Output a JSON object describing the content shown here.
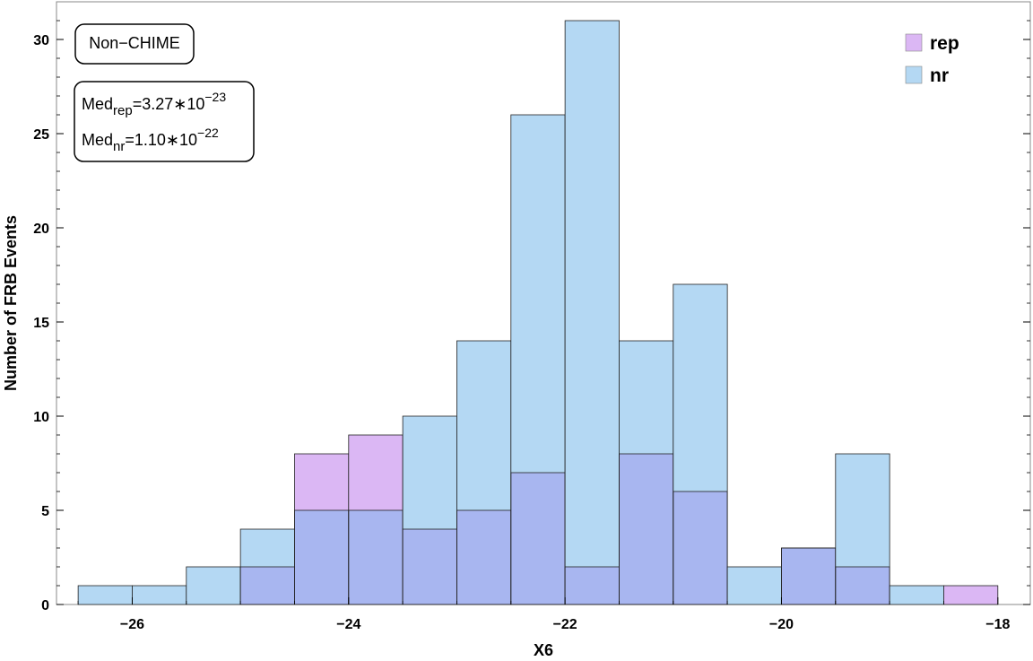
{
  "chart_data": {
    "type": "bar",
    "subtype": "overlapping-histogram",
    "xlabel": "X6",
    "ylabel": "Number of FRB Events",
    "xlim": [
      -26.7,
      -17.7
    ],
    "ylim": [
      0,
      32
    ],
    "xticks": [
      -26,
      -24,
      -22,
      -20,
      -18
    ],
    "xtick_labels": [
      "−26",
      "−24",
      "−22",
      "−20",
      "−18"
    ],
    "yticks": [
      0,
      5,
      10,
      15,
      20,
      25,
      30
    ],
    "ytick_labels": [
      "0",
      "5",
      "10",
      "15",
      "20",
      "25",
      "30"
    ],
    "bin_edges": [
      -26.5,
      -26.0,
      -25.5,
      -25.0,
      -24.5,
      -24.0,
      -23.5,
      -23.0,
      -22.5,
      -22.0,
      -21.5,
      -21.0,
      -20.5,
      -20.0,
      -19.5,
      -19.0,
      -18.5,
      -18.0
    ],
    "series": [
      {
        "name": "rep",
        "color": "#dbb7f4",
        "counts": [
          0,
          0,
          0,
          2,
          8,
          9,
          4,
          5,
          7,
          2,
          8,
          6,
          0,
          3,
          2,
          0,
          1
        ]
      },
      {
        "name": "nr",
        "color": "#b4d8f3",
        "counts": [
          1,
          1,
          2,
          4,
          5,
          5,
          10,
          14,
          26,
          31,
          14,
          17,
          2,
          3,
          8,
          1,
          0
        ]
      }
    ],
    "overlap_color": "#a8b6f0",
    "legend_position": "top-right",
    "grid": false,
    "annotations": {
      "label_box": "Non−CHIME",
      "median_rep": {
        "prefix": "Med",
        "sub": "rep",
        "value": "=3.27∗10",
        "exp": "−23"
      },
      "median_nr": {
        "prefix": "Med",
        "sub": "nr",
        "value": "=1.10∗10",
        "exp": "−22"
      }
    }
  }
}
